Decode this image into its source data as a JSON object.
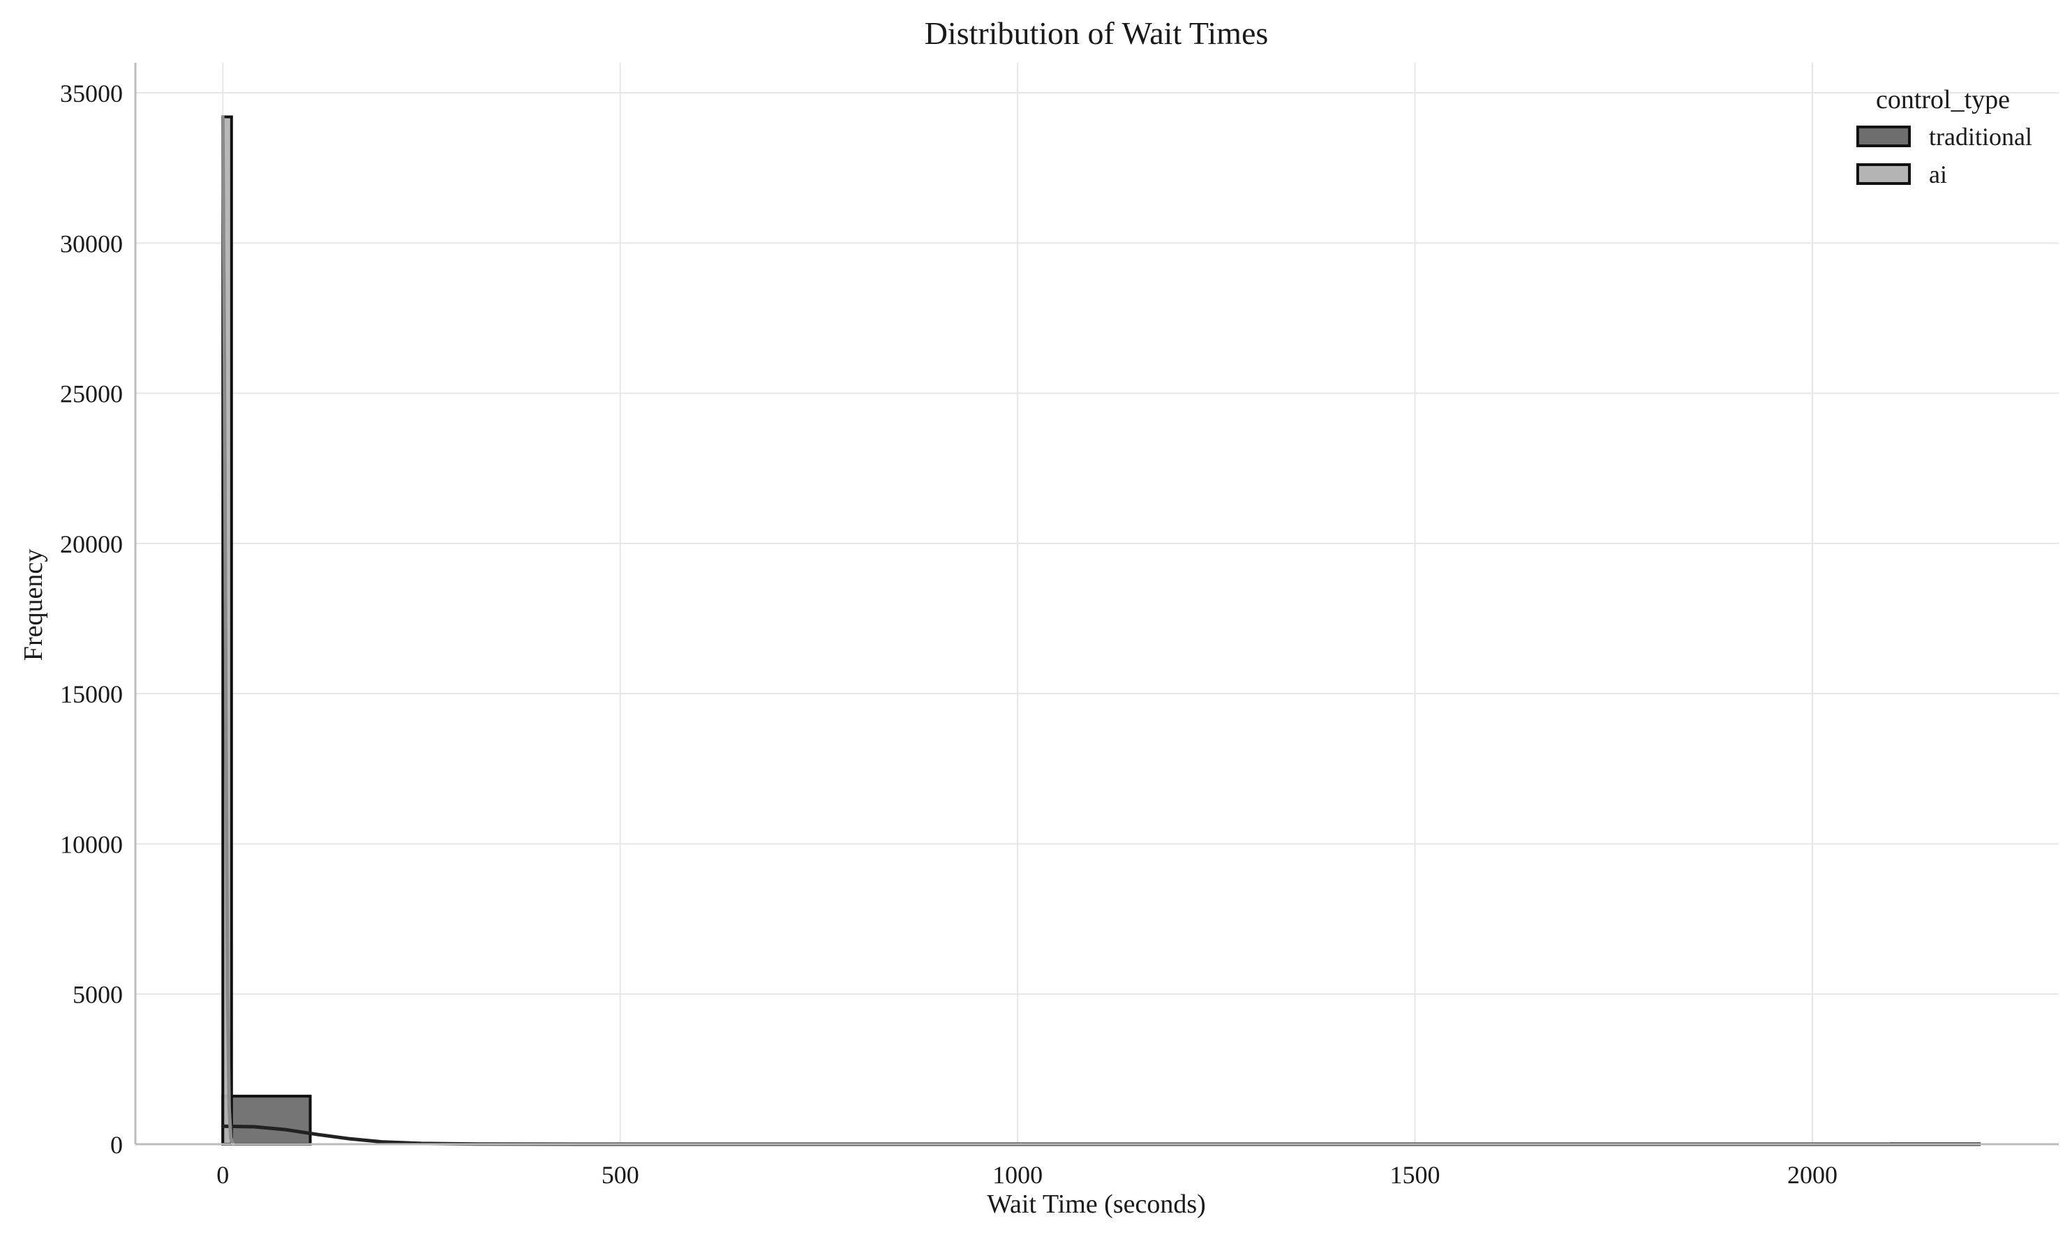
{
  "chart_data": {
    "type": "histogram",
    "title": "Distribution of Wait Times",
    "xlabel": "Wait Time (seconds)",
    "ylabel": "Frequency",
    "xlim": [
      -110,
      2310
    ],
    "ylim": [
      0,
      36000
    ],
    "xticks": [
      0,
      500,
      1000,
      1500,
      2000
    ],
    "yticks": [
      0,
      5000,
      10000,
      15000,
      20000,
      25000,
      30000,
      35000
    ],
    "grid": true,
    "legend": {
      "title": "control_type",
      "position": "top-right",
      "entries": [
        {
          "name": "traditional",
          "color": "#6e6e6e"
        },
        {
          "name": "ai",
          "color": "#b4b4b4"
        }
      ]
    },
    "series": [
      {
        "name": "traditional",
        "color": "#6e6e6e",
        "kde_color": "#222222",
        "bins": [
          {
            "x0": 0,
            "x1": 110,
            "count": 1600
          },
          {
            "x0": 2100,
            "x1": 2210,
            "count": 15
          }
        ],
        "kde": [
          [
            0,
            600
          ],
          [
            40,
            580
          ],
          [
            80,
            480
          ],
          [
            120,
            320
          ],
          [
            160,
            180
          ],
          [
            200,
            80
          ],
          [
            250,
            25
          ],
          [
            320,
            5
          ],
          [
            450,
            0
          ],
          [
            2210,
            0
          ]
        ]
      },
      {
        "name": "ai",
        "color": "#b4b4b4",
        "kde_color": "#8a8a8a",
        "bins": [
          {
            "x0": 0,
            "x1": 11,
            "count": 34200
          }
        ],
        "kde": [
          [
            0,
            34200
          ],
          [
            2,
            26000
          ],
          [
            4,
            14000
          ],
          [
            6,
            5000
          ],
          [
            8,
            1200
          ],
          [
            10,
            200
          ],
          [
            13,
            0
          ]
        ]
      }
    ]
  }
}
